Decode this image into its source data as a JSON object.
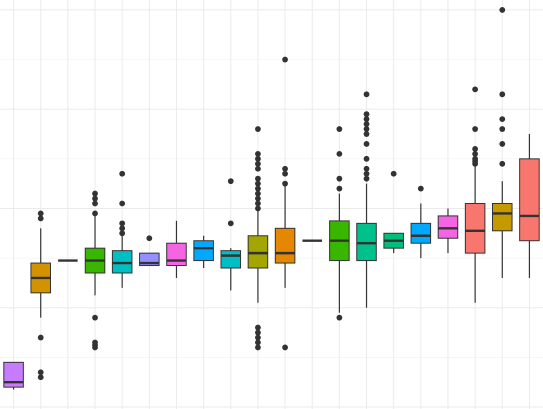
{
  "chart_data": {
    "type": "boxplot",
    "title": "",
    "xlabel": "",
    "ylabel": "",
    "grid": true,
    "legend": "none",
    "ylim": [
      0,
      8.2
    ],
    "boxes": [
      {
        "color": "#c77cff",
        "q1": 0.4,
        "median": 0.5,
        "q3": 0.9,
        "low": 0.35,
        "high": 0.9,
        "outliers": []
      },
      {
        "color": "#d39200",
        "q1": 2.3,
        "median": 2.6,
        "q3": 2.9,
        "low": 1.8,
        "high": 3.6,
        "outliers": [
          3.8,
          3.9,
          1.4,
          0.7,
          0.6
        ]
      },
      {
        "color": "#333333",
        "q1": 2.95,
        "median": 2.95,
        "q3": 2.95,
        "low": 2.95,
        "high": 2.95,
        "outliers": []
      },
      {
        "color": "#39b600",
        "q1": 2.7,
        "median": 2.95,
        "q3": 3.2,
        "low": 2.25,
        "high": 3.9,
        "outliers": [
          4.1,
          4.2,
          4.3,
          3.9,
          1.8,
          1.3,
          1.25,
          1.2
        ]
      },
      {
        "color": "#00bfc4",
        "q1": 2.7,
        "median": 2.9,
        "q3": 3.15,
        "low": 2.4,
        "high": 3.6,
        "outliers": [
          4.7,
          4.1,
          3.7,
          3.6,
          3.5
        ]
      },
      {
        "color": "#9590ff",
        "q1": 2.85,
        "median": 2.9,
        "q3": 3.1,
        "low": 2.85,
        "high": 3.1,
        "outliers": [
          3.4
        ]
      },
      {
        "color": "#f564e3",
        "q1": 2.85,
        "median": 2.95,
        "q3": 3.3,
        "low": 2.6,
        "high": 3.75,
        "outliers": []
      },
      {
        "color": "#00a9ff",
        "q1": 2.95,
        "median": 3.2,
        "q3": 3.35,
        "low": 2.8,
        "high": 3.45,
        "outliers": []
      },
      {
        "color": "#00bfc4",
        "q1": 2.8,
        "median": 3.05,
        "q3": 3.15,
        "low": 2.35,
        "high": 3.2,
        "outliers": [
          4.55,
          3.7
        ]
      },
      {
        "color": "#a3a500",
        "q1": 2.8,
        "median": 3.1,
        "q3": 3.45,
        "low": 2.1,
        "high": 4.5,
        "outliers": [
          5.6,
          5.1,
          5.0,
          4.9,
          4.8,
          4.6,
          4.5,
          4.4,
          4.3,
          4.2,
          4.1,
          4.0,
          1.6,
          1.5,
          1.4,
          1.3,
          1.2
        ]
      },
      {
        "color": "#e58700",
        "q1": 2.9,
        "median": 3.1,
        "q3": 3.6,
        "low": 2.4,
        "high": 4.5,
        "outliers": [
          7.0,
          4.8,
          4.7,
          4.5,
          1.2
        ]
      },
      {
        "color": "#333333",
        "q1": 3.35,
        "median": 3.35,
        "q3": 3.35,
        "low": 3.35,
        "high": 3.35,
        "outliers": []
      },
      {
        "color": "#39b600",
        "q1": 2.95,
        "median": 3.35,
        "q3": 3.75,
        "low": 1.9,
        "high": 4.3,
        "outliers": [
          5.6,
          5.1,
          4.6,
          4.4,
          1.8
        ]
      },
      {
        "color": "#00c08b",
        "q1": 2.95,
        "median": 3.3,
        "q3": 3.7,
        "low": 2.0,
        "high": 4.5,
        "outliers": [
          6.3,
          5.9,
          5.8,
          5.7,
          5.6,
          5.5,
          5.3,
          5.0,
          4.8,
          4.7,
          4.6
        ]
      },
      {
        "color": "#00bf7d",
        "q1": 3.2,
        "median": 3.35,
        "q3": 3.5,
        "low": 3.1,
        "high": 3.5,
        "outliers": [
          4.7
        ]
      },
      {
        "color": "#00a9ff",
        "q1": 3.3,
        "median": 3.45,
        "q3": 3.7,
        "low": 3.0,
        "high": 4.1,
        "outliers": [
          4.4
        ]
      },
      {
        "color": "#f564e3",
        "q1": 3.4,
        "median": 3.6,
        "q3": 3.85,
        "low": 3.1,
        "high": 4.0,
        "outliers": []
      },
      {
        "color": "#f8766d",
        "q1": 3.1,
        "median": 3.55,
        "q3": 4.1,
        "low": 2.1,
        "high": 4.9,
        "outliers": [
          6.4,
          5.6,
          5.2,
          5.1,
          5.0,
          4.95,
          4.9
        ]
      },
      {
        "color": "#c49a00",
        "q1": 3.55,
        "median": 3.9,
        "q3": 4.1,
        "low": 2.6,
        "high": 4.55,
        "outliers": [
          8.0,
          6.3,
          5.8,
          5.6,
          5.3,
          4.9
        ]
      },
      {
        "color": "#f8766d",
        "q1": 3.35,
        "median": 3.85,
        "q3": 5.0,
        "low": 2.6,
        "high": 5.5,
        "outliers": []
      }
    ]
  }
}
